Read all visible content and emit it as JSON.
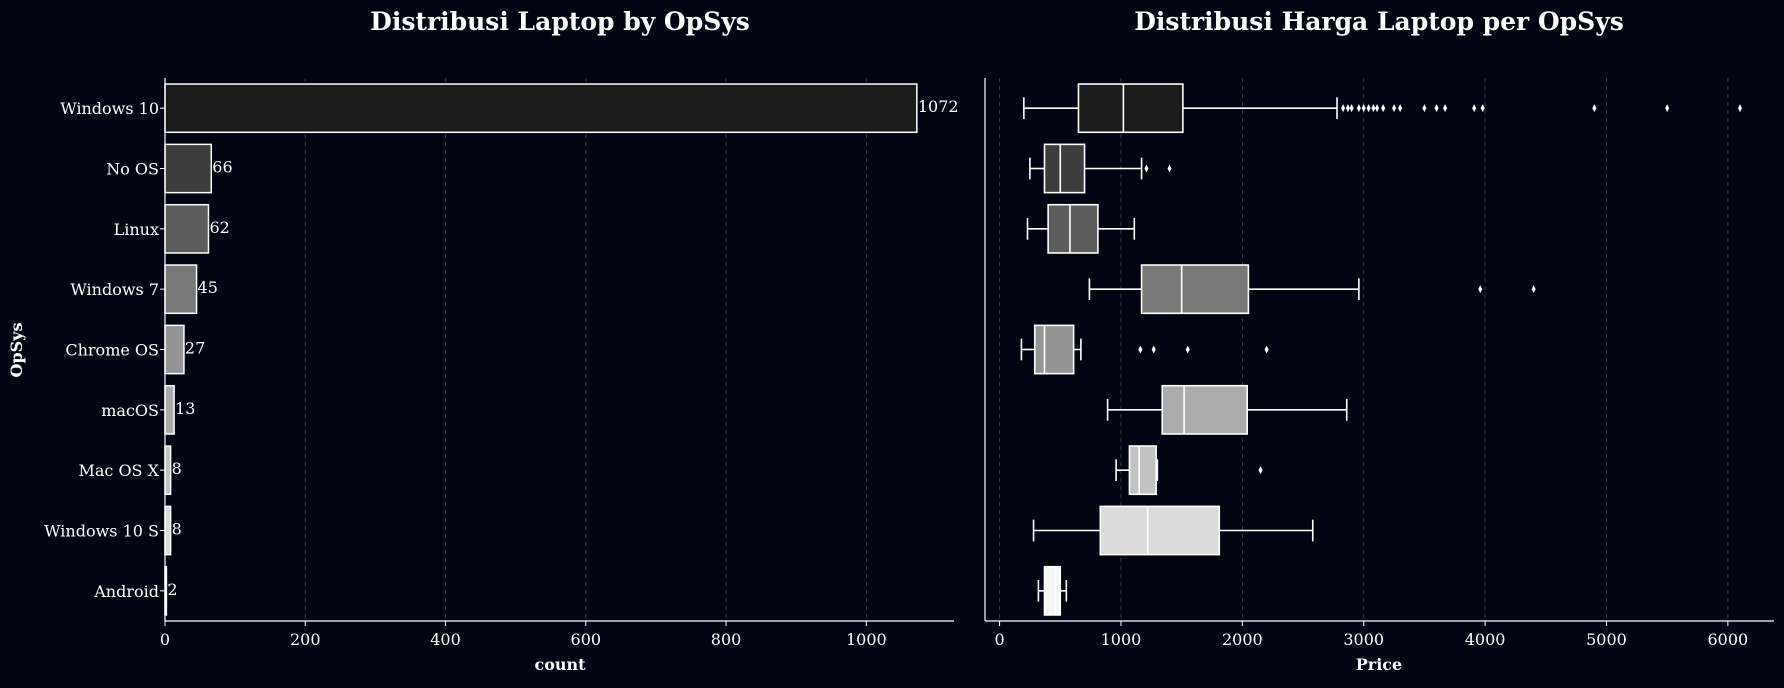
{
  "chart_data": [
    {
      "type": "bar",
      "orientation": "horizontal",
      "title": "Distribusi Laptop by OpSys",
      "xlabel": "count",
      "ylabel": "OpSys",
      "categories": [
        "Windows 10",
        "No OS",
        "Linux",
        "Windows 7",
        "Chrome OS",
        "macOS",
        "Mac OS X",
        "Windows 10 S",
        "Android"
      ],
      "values": [
        1072,
        66,
        62,
        45,
        27,
        13,
        8,
        8,
        2
      ],
      "data_labels": [
        "1072",
        "66",
        "62",
        "45",
        "27",
        "13",
        "8",
        "8",
        "2"
      ],
      "xlim": [
        0,
        1125
      ],
      "xticks": [
        0,
        200,
        400,
        600,
        800,
        1000
      ],
      "grid": "vertical dashed",
      "colors": [
        "#1b1b1b",
        "#3d3d3d",
        "#5c5c5c",
        "#787878",
        "#949494",
        "#ababab",
        "#c2c2c2",
        "#dbdbdb",
        "#f5f5f5"
      ]
    },
    {
      "type": "box",
      "orientation": "horizontal",
      "title": "Distribusi Harga Laptop per OpSys",
      "xlabel": "Price",
      "ylabel": "",
      "categories": [
        "Windows 10",
        "No OS",
        "Linux",
        "Windows 7",
        "Chrome OS",
        "macOS",
        "Mac OS X",
        "Windows 10 S",
        "Android"
      ],
      "xlim": [
        -120,
        6380
      ],
      "xticks": [
        0,
        1000,
        2000,
        3000,
        4000,
        5000,
        6000
      ],
      "grid": "vertical dashed",
      "colors": [
        "#1b1b1b",
        "#3d3d3d",
        "#5c5c5c",
        "#787878",
        "#949494",
        "#ababab",
        "#c2c2c2",
        "#dbdbdb",
        "#f5f5f5"
      ],
      "boxes": [
        {
          "whislo": 200,
          "q1": 650,
          "med": 1020,
          "q3": 1510,
          "whishi": 2780,
          "fliers": [
            2830,
            2870,
            2900,
            2960,
            3000,
            3040,
            3080,
            3110,
            3160,
            3250,
            3300,
            3500,
            3600,
            3670,
            3910,
            3980,
            4900,
            5500,
            6100
          ]
        },
        {
          "whislo": 250,
          "q1": 370,
          "med": 500,
          "q3": 700,
          "whishi": 1170,
          "fliers": [
            1210,
            1400
          ]
        },
        {
          "whislo": 230,
          "q1": 400,
          "med": 580,
          "q3": 810,
          "whishi": 1110,
          "fliers": []
        },
        {
          "whislo": 740,
          "q1": 1170,
          "med": 1500,
          "q3": 2050,
          "whishi": 2960,
          "fliers": [
            3960,
            4400
          ]
        },
        {
          "whislo": 180,
          "q1": 290,
          "med": 370,
          "q3": 610,
          "whishi": 670,
          "fliers": [
            1160,
            1270,
            1550,
            2200
          ]
        },
        {
          "whislo": 890,
          "q1": 1340,
          "med": 1520,
          "q3": 2040,
          "whishi": 2860,
          "fliers": []
        },
        {
          "whislo": 960,
          "q1": 1070,
          "med": 1150,
          "q3": 1290,
          "whishi": 1300,
          "fliers": [
            2150
          ]
        },
        {
          "whislo": 280,
          "q1": 830,
          "med": 1220,
          "q3": 1810,
          "whishi": 2580,
          "fliers": []
        },
        {
          "whislo": 320,
          "q1": 370,
          "med": 460,
          "q3": 500,
          "whishi": 550,
          "fliers": []
        }
      ]
    }
  ]
}
